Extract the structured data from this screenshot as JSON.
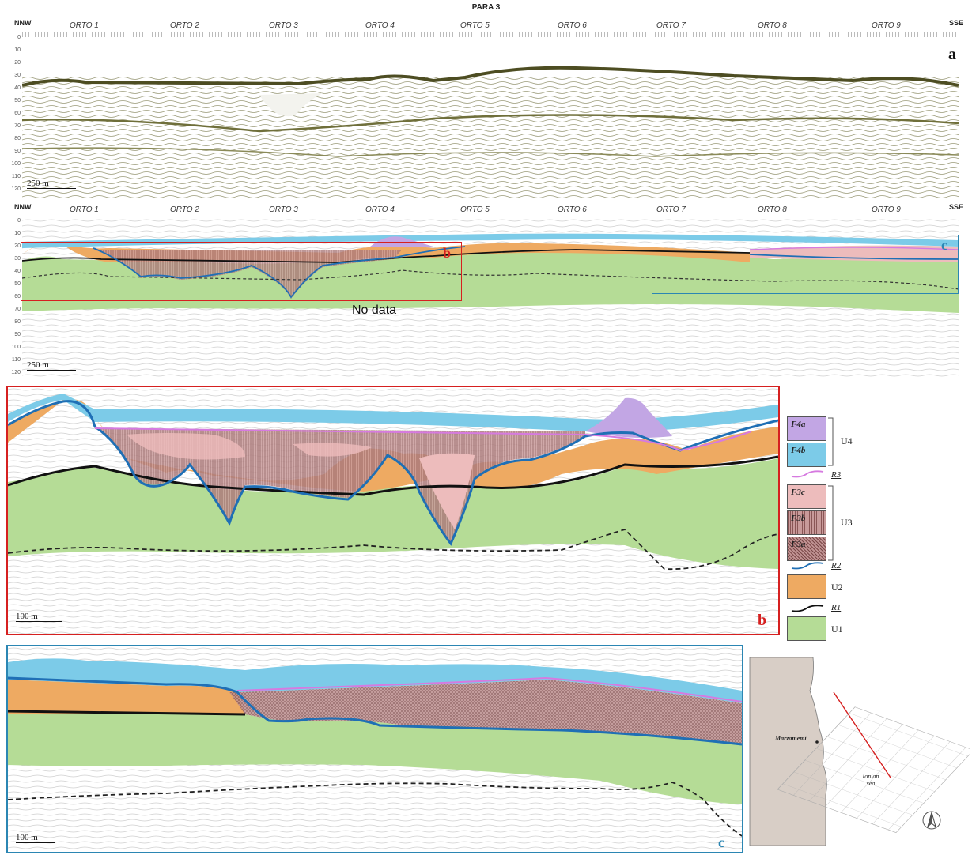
{
  "figure": {
    "title": "PARA 3",
    "directions": {
      "start": "NNW",
      "end": "SSE"
    },
    "orto_lines": [
      "ORTO 1",
      "ORTO 2",
      "ORTO 3",
      "ORTO 4",
      "ORTO 5",
      "ORTO 6",
      "ORTO 7",
      "ORTO 8",
      "ORTO 9"
    ],
    "depth_ticks": [
      "0",
      "10",
      "20",
      "30",
      "40",
      "50",
      "60",
      "70",
      "80",
      "90",
      "100",
      "110",
      "120"
    ],
    "no_data_label": "No data",
    "panels": {
      "a": {
        "letter": "a",
        "scale": "250 m"
      },
      "overview": {
        "scale": "250 m",
        "box_b": "b",
        "box_c": "c"
      },
      "b": {
        "letter": "b",
        "scale": "100 m"
      },
      "c": {
        "letter": "c",
        "scale": "100 m"
      }
    },
    "legend": {
      "facies": [
        "F4a",
        "F4b",
        "F3c",
        "F3b",
        "F3a"
      ],
      "units": [
        "U4",
        "U3",
        "U2",
        "U1"
      ],
      "reflectors": [
        "R3",
        "R2",
        "R1"
      ]
    },
    "map": {
      "place": "Marzamemi",
      "sea_line1": "Ionian",
      "sea_line2": "sea"
    },
    "colors": {
      "U1": "#b5dc96",
      "U2": "#eeaa62",
      "U3c": "#edbcbc",
      "U3b": "#b07c7c",
      "U4a": "#c2a6e4",
      "U4b": "#7ccbe8",
      "R1": "#111111",
      "R2": "#1f6fb5",
      "R3": "#d67ae0",
      "box_b": "#d62020",
      "box_c": "#2b86b3"
    }
  }
}
